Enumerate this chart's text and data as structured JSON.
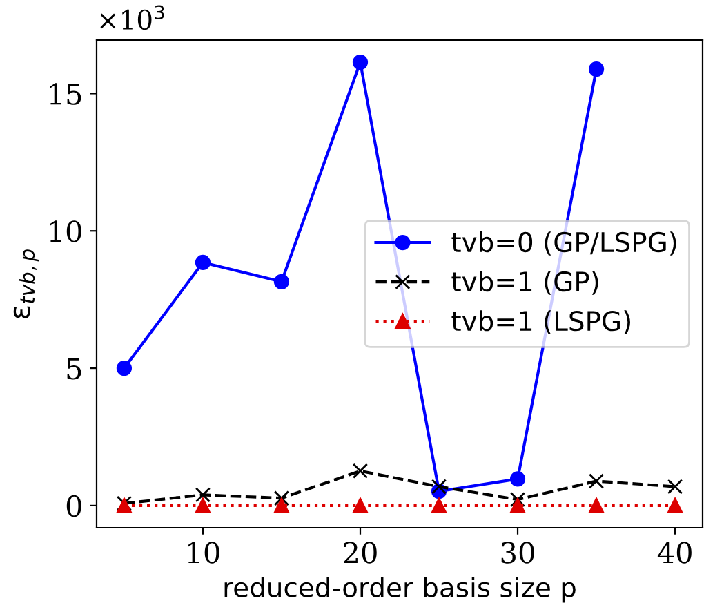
{
  "chart_data": {
    "type": "line",
    "xlabel": "reduced-order basis size p",
    "ylabel": "ε$_{tvb,p}$",
    "x": [
      5,
      10,
      15,
      20,
      25,
      30,
      35,
      40
    ],
    "series": [
      {
        "name": "tvb=0 (GP/LSPG)",
        "color": "#0000ff",
        "marker": "circle",
        "line_style": "solid",
        "values": [
          5.0,
          8.85,
          8.15,
          16.14,
          0.52,
          0.97,
          15.89,
          null
        ]
      },
      {
        "name": "tvb=1 (GP)",
        "color": "#000000",
        "marker": "cross",
        "line_style": "dashed",
        "values": [
          0.08,
          0.39,
          0.27,
          1.26,
          0.69,
          0.22,
          0.89,
          0.69
        ]
      },
      {
        "name": "tvb=1 (LSPG)",
        "color": "#dd0000",
        "marker": "triangle",
        "line_style": "dotted",
        "values": [
          0,
          0,
          0,
          0,
          0,
          0,
          0,
          0
        ]
      }
    ],
    "xlim": [
      3.25,
      41.75
    ],
    "ylim": [
      -0.807,
      16.947
    ],
    "xticks": [
      10,
      20,
      30,
      40
    ],
    "yticks": [
      0,
      5,
      10,
      15
    ],
    "annotations": [
      "×10$^{3}$"
    ],
    "legend": "center right",
    "grid": false
  }
}
